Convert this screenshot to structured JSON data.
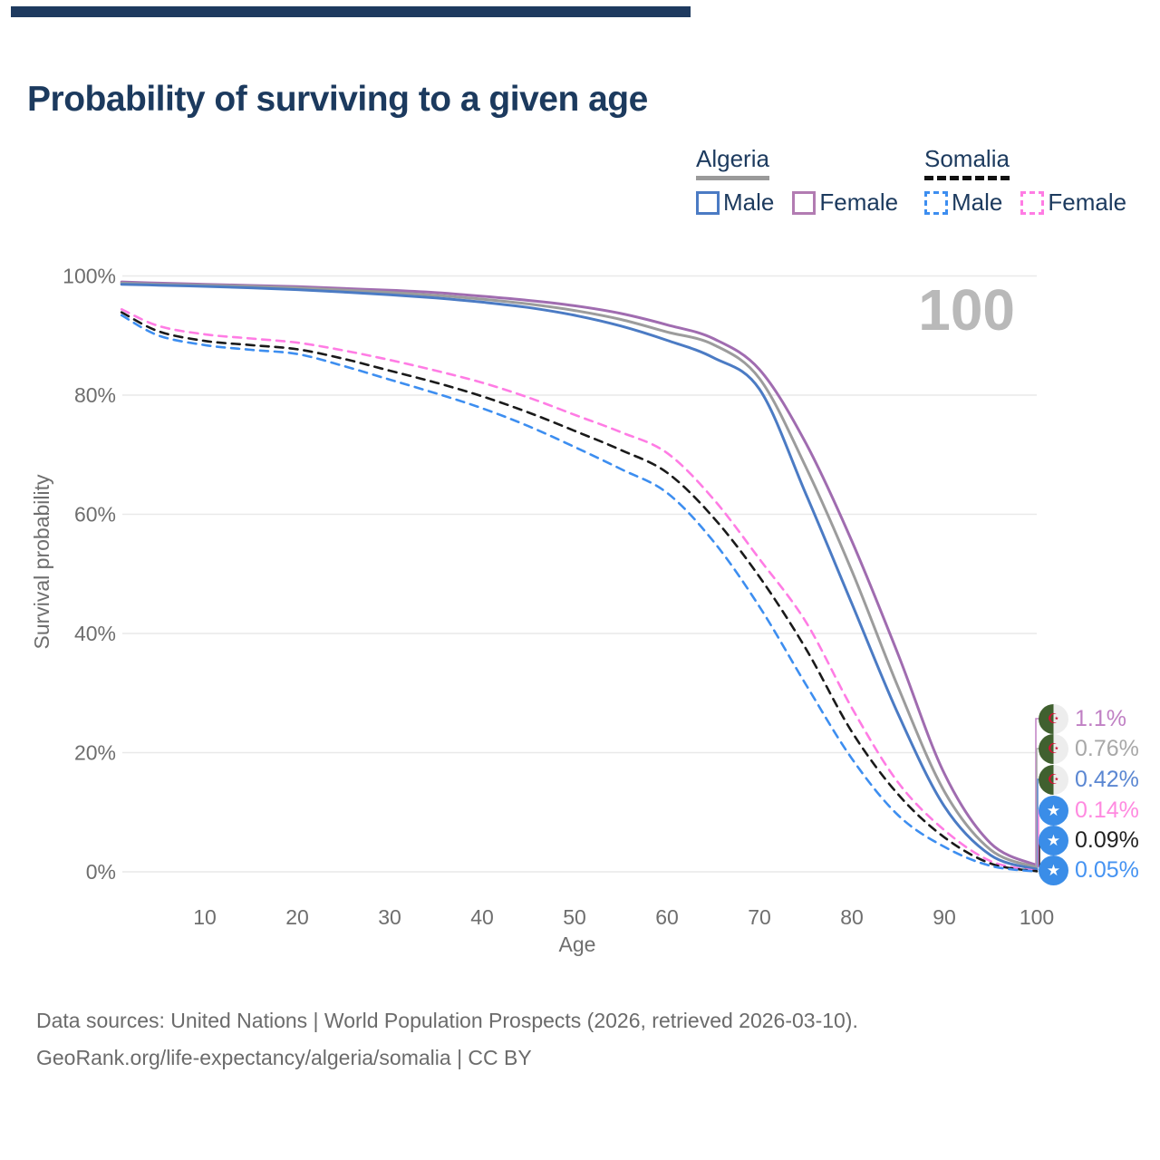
{
  "page": {
    "title": "Probability of surviving to a given age",
    "footer_line1": "Data sources: United Nations | World Population Prospects (2026, retrieved 2026-03-10).",
    "footer_line2": "GeoRank.org/life-expectancy/algeria/somalia | CC BY"
  },
  "legend": {
    "groups": [
      {
        "country": "Algeria",
        "line_color": "#9a9a9a",
        "line_style": "solid",
        "items": [
          {
            "label": "Male",
            "color": "#4b7bc4",
            "dash": false
          },
          {
            "label": "Female",
            "color": "#b27cb2",
            "dash": false
          }
        ]
      },
      {
        "country": "Somalia",
        "line_color": "#111111",
        "line_style": "dashed",
        "items": [
          {
            "label": "Male",
            "color": "#3d8ef0",
            "dash": true
          },
          {
            "label": "Female",
            "color": "#ff7ce4",
            "dash": true
          }
        ]
      }
    ]
  },
  "chart_data": {
    "type": "line",
    "title": "Probability of surviving to a given age",
    "xlabel": "Age",
    "ylabel": "Survival probability",
    "xlim": [
      1,
      100
    ],
    "ylim": [
      0,
      100
    ],
    "x_ticks": [
      10,
      20,
      30,
      40,
      50,
      60,
      70,
      80,
      90,
      100
    ],
    "y_ticks": [
      0,
      20,
      40,
      60,
      80,
      100
    ],
    "y_tick_suffix": "%",
    "grid": "horizontal",
    "legend_position": "top-right",
    "watermark": "100",
    "ages": [
      1,
      5,
      10,
      15,
      20,
      25,
      30,
      35,
      40,
      45,
      50,
      55,
      60,
      65,
      70,
      75,
      80,
      85,
      90,
      95,
      100
    ],
    "series": [
      {
        "id": "algeria-female",
        "name": "Algeria Female",
        "country": "Algeria",
        "sex": "Female",
        "color": "#a06cb0",
        "label_color": "#c080c4",
        "dash": false,
        "flag": "algeria",
        "end_label": "1.1%",
        "values": [
          99.0,
          98.8,
          98.6,
          98.4,
          98.2,
          97.9,
          97.6,
          97.2,
          96.6,
          95.9,
          95.0,
          93.7,
          91.8,
          89.5,
          84.3,
          72.0,
          55.5,
          36.5,
          16.5,
          4.8,
          1.1
        ]
      },
      {
        "id": "algeria-total",
        "name": "Algeria",
        "country": "Algeria",
        "sex": "Both",
        "color": "#9c9c9c",
        "label_color": "#a8a8a8",
        "dash": false,
        "flag": "algeria",
        "end_label": "0.76%",
        "values": [
          98.8,
          98.6,
          98.45,
          98.25,
          98.0,
          97.65,
          97.25,
          96.75,
          96.1,
          95.3,
          94.2,
          92.7,
          90.6,
          88.5,
          82.8,
          68.0,
          50.5,
          31.0,
          13.5,
          3.7,
          0.76
        ]
      },
      {
        "id": "algeria-male",
        "name": "Algeria Male",
        "country": "Algeria",
        "sex": "Male",
        "color": "#4b7bc4",
        "label_color": "#5b87d2",
        "dash": false,
        "flag": "algeria",
        "end_label": "0.42%",
        "values": [
          98.6,
          98.45,
          98.25,
          98.0,
          97.7,
          97.3,
          96.85,
          96.3,
          95.6,
          94.7,
          93.4,
          91.6,
          89.2,
          86.3,
          81.0,
          63.5,
          45.0,
          26.5,
          11.0,
          2.8,
          0.42
        ]
      },
      {
        "id": "somalia-female",
        "name": "Somalia Female",
        "country": "Somalia",
        "sex": "Female",
        "color": "#ff7ce4",
        "label_color": "#ff8ae0",
        "dash": true,
        "flag": "somalia",
        "end_label": "0.14%",
        "values": [
          94.4,
          91.6,
          90.2,
          89.5,
          88.8,
          87.5,
          85.9,
          84.1,
          82.1,
          79.6,
          76.7,
          73.8,
          70.3,
          62.6,
          52.5,
          42.0,
          27.5,
          15.0,
          7.0,
          1.8,
          0.14
        ]
      },
      {
        "id": "somalia-total",
        "name": "Somalia",
        "country": "Somalia",
        "sex": "Both",
        "color": "#1a1a1a",
        "label_color": "#222222",
        "dash": true,
        "flag": "somalia",
        "end_label": "0.09%",
        "values": [
          93.9,
          90.7,
          89.1,
          88.4,
          87.7,
          86.1,
          84.1,
          82.1,
          79.8,
          77.1,
          74.0,
          70.8,
          67.0,
          59.5,
          49.5,
          37.5,
          23.5,
          13.0,
          5.8,
          1.4,
          0.09
        ]
      },
      {
        "id": "somalia-male",
        "name": "Somalia Male",
        "country": "Somalia",
        "sex": "Male",
        "color": "#3d8ef0",
        "label_color": "#4593f2",
        "dash": true,
        "flag": "somalia",
        "end_label": "0.05%",
        "values": [
          93.4,
          90.0,
          88.4,
          87.6,
          86.9,
          84.9,
          82.6,
          80.3,
          77.8,
          74.8,
          71.3,
          67.6,
          63.6,
          55.5,
          44.5,
          31.5,
          19.0,
          9.5,
          4.2,
          1.0,
          0.05
        ]
      }
    ]
  }
}
